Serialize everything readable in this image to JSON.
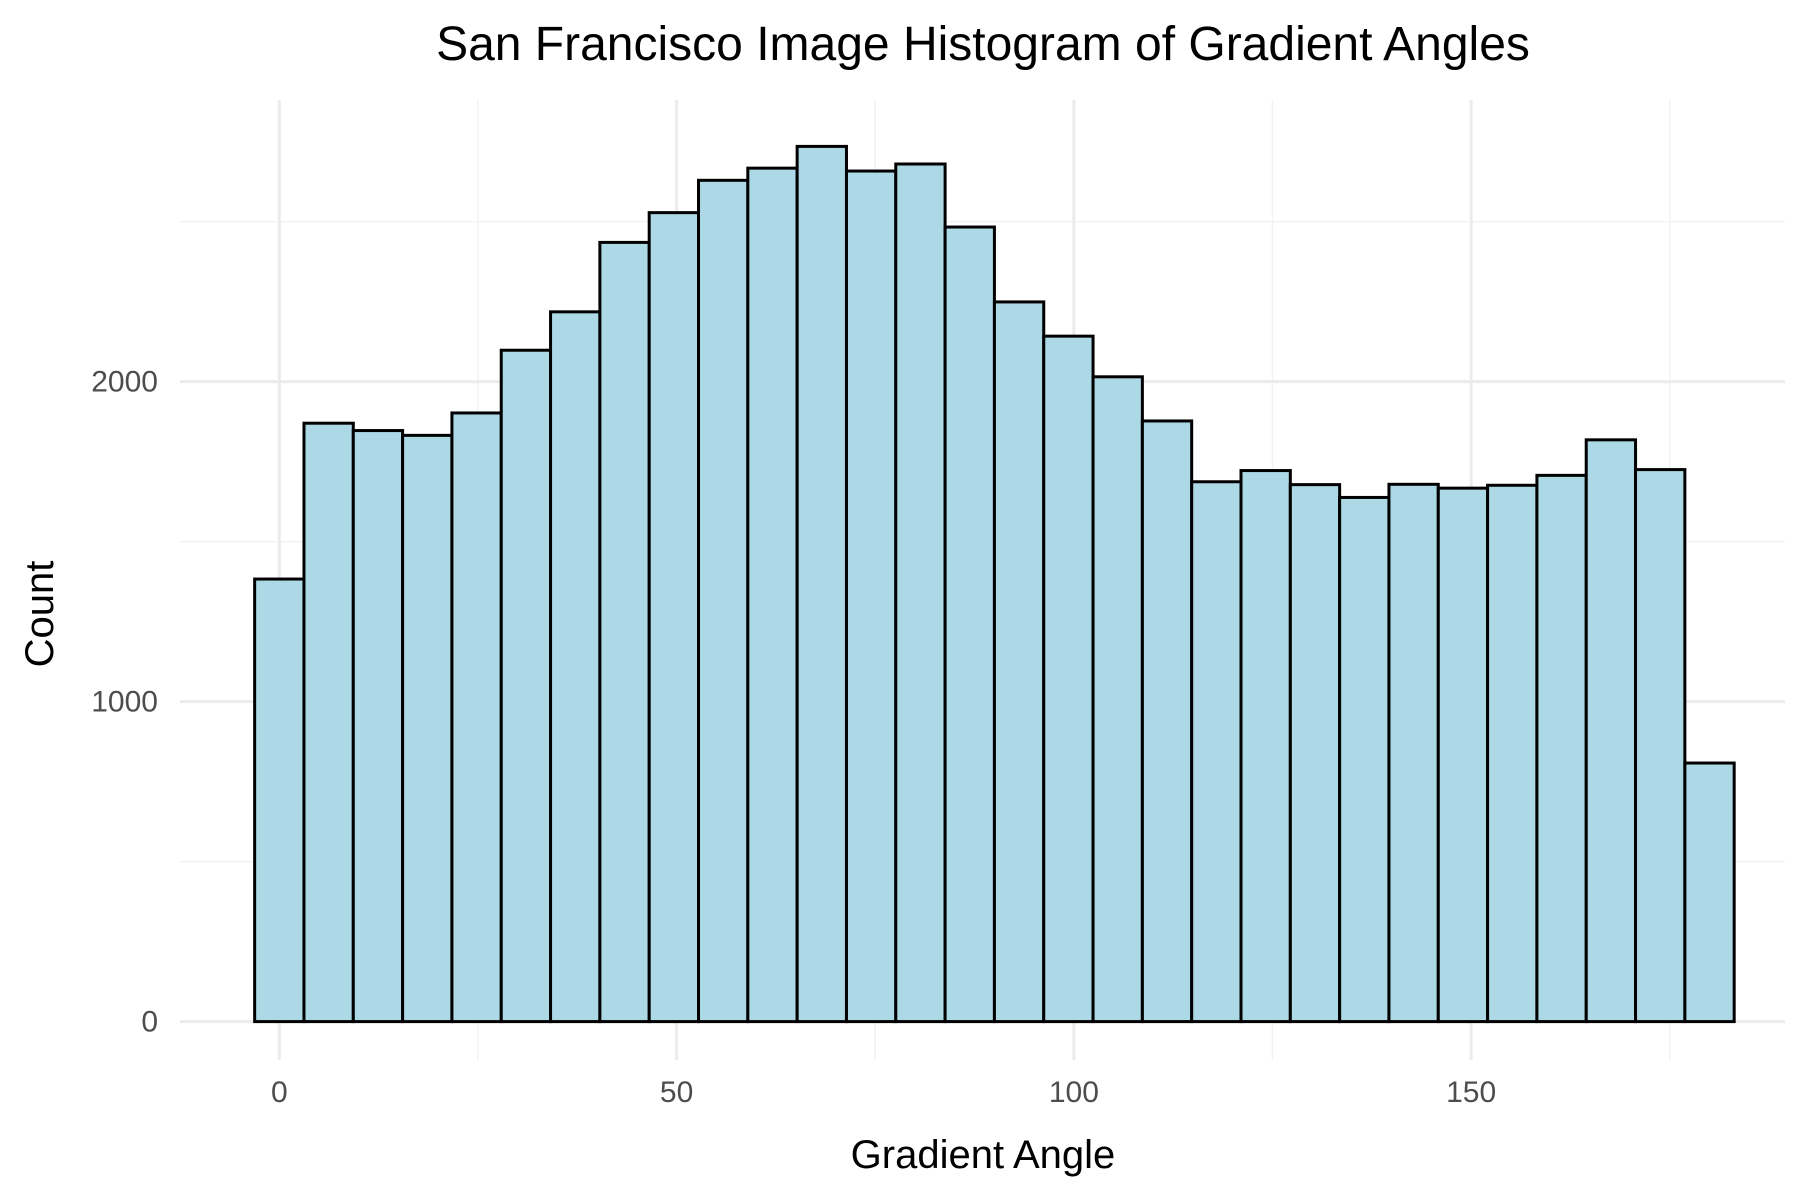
{
  "chart_data": {
    "type": "bar",
    "title": "San Francisco Image Histogram of Gradient Angles",
    "xlabel": "Gradient Angle",
    "ylabel": "Count",
    "bin_width": 6.2069,
    "bin_start": -3.1034,
    "bins": [
      {
        "center": 0.0,
        "count": 1383
      },
      {
        "center": 6.21,
        "count": 1870
      },
      {
        "center": 12.41,
        "count": 1847
      },
      {
        "center": 18.62,
        "count": 1832
      },
      {
        "center": 24.83,
        "count": 1902
      },
      {
        "center": 31.03,
        "count": 2098
      },
      {
        "center": 37.24,
        "count": 2218
      },
      {
        "center": 43.45,
        "count": 2435
      },
      {
        "center": 49.66,
        "count": 2528
      },
      {
        "center": 55.86,
        "count": 2629
      },
      {
        "center": 62.07,
        "count": 2667
      },
      {
        "center": 68.28,
        "count": 2735
      },
      {
        "center": 74.48,
        "count": 2658
      },
      {
        "center": 80.69,
        "count": 2680
      },
      {
        "center": 86.9,
        "count": 2483
      },
      {
        "center": 93.1,
        "count": 2249
      },
      {
        "center": 99.31,
        "count": 2142
      },
      {
        "center": 105.52,
        "count": 2015
      },
      {
        "center": 111.72,
        "count": 1877
      },
      {
        "center": 117.93,
        "count": 1687
      },
      {
        "center": 124.14,
        "count": 1722
      },
      {
        "center": 130.34,
        "count": 1678
      },
      {
        "center": 136.55,
        "count": 1638
      },
      {
        "center": 142.76,
        "count": 1679
      },
      {
        "center": 148.97,
        "count": 1667
      },
      {
        "center": 155.17,
        "count": 1676
      },
      {
        "center": 161.38,
        "count": 1707
      },
      {
        "center": 167.59,
        "count": 1818
      },
      {
        "center": 173.79,
        "count": 1725
      },
      {
        "center": 180.0,
        "count": 808
      }
    ],
    "xlim": [
      -12.5,
      189.5
    ],
    "ylim": [
      -120,
      2880
    ],
    "x_ticks": [
      0,
      50,
      100,
      150
    ],
    "x_tick_labels": [
      "0",
      "50",
      "100",
      "150"
    ],
    "y_ticks": [
      0,
      1000,
      2000
    ],
    "y_tick_labels": [
      "0",
      "1000",
      "2000"
    ],
    "grid": true,
    "bar_fill": "#add8e6",
    "bar_outline": "#000000",
    "grid_color": "#ebebeb"
  }
}
